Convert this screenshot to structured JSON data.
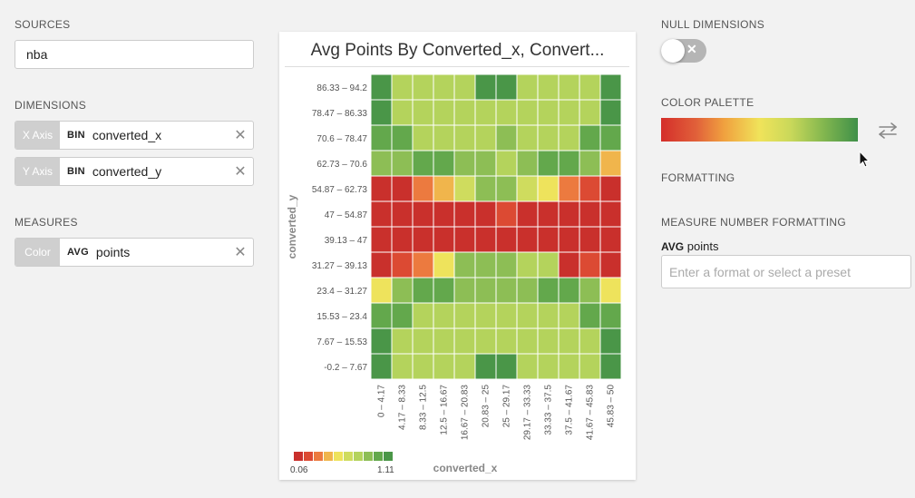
{
  "sources": {
    "label": "SOURCES",
    "value": "nba"
  },
  "dimensions": {
    "label": "DIMENSIONS",
    "items": [
      {
        "tag": "X Axis",
        "agg": "BIN",
        "field": "converted_x"
      },
      {
        "tag": "Y Axis",
        "agg": "BIN",
        "field": "converted_y"
      }
    ]
  },
  "measures": {
    "label": "MEASURES",
    "items": [
      {
        "tag": "Color",
        "agg": "AVG",
        "field": "points"
      }
    ]
  },
  "settings": {
    "null_dimensions": "NULL DIMENSIONS",
    "color_palette": "COLOR PALETTE",
    "formatting": "FORMATTING",
    "measure_number_formatting": "MEASURE NUMBER FORMATTING",
    "measure_agg": "AVG",
    "measure_field": "points",
    "format_placeholder": "Enter a format or select a preset"
  },
  "colors": {
    "scale": [
      "#c9302c",
      "#dc4a33",
      "#ec7a3f",
      "#f0b54c",
      "#eee35c",
      "#cfdc5e",
      "#b4d35c",
      "#8dbe55",
      "#63a84c",
      "#4a9648"
    ]
  },
  "chart_data": {
    "type": "heatmap",
    "title": "Avg Points By Converted_x, Convert...",
    "xlabel": "converted_x",
    "ylabel": "converted_y",
    "x_categories": [
      "0 – 4.17",
      "4.17 – 8.33",
      "8.33 – 12.5",
      "12.5 – 16.67",
      "16.67 – 20.83",
      "20.83 – 25",
      "25 – 29.17",
      "29.17 – 33.33",
      "33.33 – 37.5",
      "37.5 – 41.67",
      "41.67 – 45.83",
      "45.83 – 50"
    ],
    "y_categories": [
      "86.33 – 94.2",
      "78.47 – 86.33",
      "70.6 – 78.47",
      "62.73 – 70.6",
      "54.87 – 62.73",
      "47 – 54.87",
      "39.13 – 47",
      "31.27 – 39.13",
      "23.4 – 31.27",
      "15.53 – 23.4",
      "7.67 – 15.53",
      "-0.2 – 7.67"
    ],
    "legend": {
      "min_label": "0.06",
      "max_label": "1.11"
    },
    "cell_levels": [
      [
        9,
        6,
        6,
        6,
        6,
        9,
        9,
        6,
        6,
        6,
        6,
        9
      ],
      [
        9,
        6,
        6,
        6,
        6,
        6,
        6,
        6,
        6,
        6,
        6,
        9
      ],
      [
        8,
        8,
        6,
        6,
        6,
        6,
        7,
        6,
        6,
        6,
        8,
        8
      ],
      [
        7,
        7,
        8,
        8,
        7,
        7,
        6,
        7,
        8,
        8,
        7,
        3
      ],
      [
        0,
        0,
        2,
        3,
        5,
        7,
        7,
        5,
        4,
        2,
        1,
        0
      ],
      [
        0,
        0,
        0,
        0,
        0,
        0,
        1,
        0,
        0,
        0,
        0,
        0
      ],
      [
        0,
        0,
        0,
        0,
        0,
        0,
        0,
        0,
        0,
        0,
        0,
        0
      ],
      [
        0,
        1,
        2,
        4,
        7,
        7,
        7,
        6,
        6,
        0,
        1,
        0
      ],
      [
        4,
        7,
        8,
        8,
        7,
        7,
        7,
        7,
        8,
        8,
        7,
        4
      ],
      [
        8,
        8,
        6,
        6,
        6,
        6,
        6,
        6,
        6,
        6,
        8,
        8
      ],
      [
        9,
        6,
        6,
        6,
        6,
        6,
        6,
        6,
        6,
        6,
        6,
        9
      ],
      [
        9,
        6,
        6,
        6,
        6,
        9,
        9,
        6,
        6,
        6,
        6,
        9
      ]
    ]
  }
}
